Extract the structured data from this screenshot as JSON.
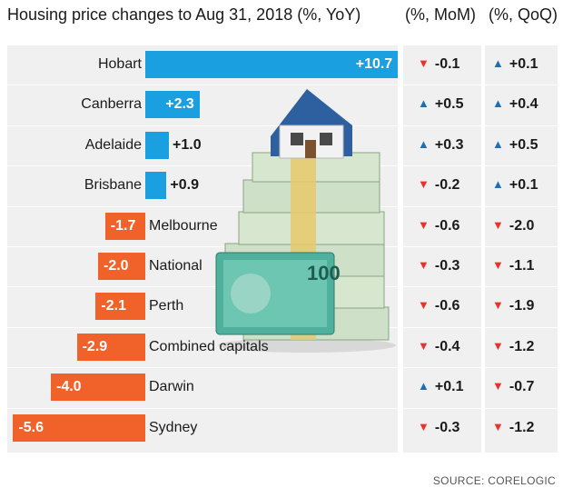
{
  "headers": {
    "yoy": "Housing price changes to Aug 31, 2018 (%, YoY)",
    "mom": "(%, MoM)",
    "qoq": "(%, QoQ)"
  },
  "chart_data": {
    "type": "bar",
    "orientation": "horizontal",
    "title": "Housing price changes to Aug 31, 2018 (%, YoY)",
    "categories": [
      "Hobart",
      "Canberra",
      "Adelaide",
      "Brisbane",
      "Melbourne",
      "National",
      "Perth",
      "Combined capitals",
      "Darwin",
      "Sydney"
    ],
    "yoy_labels": [
      "+10.7",
      "+2.3",
      "+1.0",
      "+0.9",
      "-1.7",
      "-2.0",
      "-2.1",
      "-2.9",
      "-4.0",
      "-5.6"
    ],
    "series": [
      {
        "name": "%, YoY",
        "values": [
          10.7,
          2.3,
          1.0,
          0.9,
          -1.7,
          -2.0,
          -2.1,
          -2.9,
          -4.0,
          -5.6
        ]
      },
      {
        "name": "%, MoM",
        "values": [
          -0.1,
          0.5,
          0.3,
          -0.2,
          -0.6,
          -0.3,
          -0.6,
          -0.4,
          0.1,
          -0.3
        ],
        "labels": [
          "-0.1",
          "+0.5",
          "+0.3",
          "-0.2",
          "-0.6",
          "-0.3",
          "-0.6",
          "-0.4",
          "+0.1",
          "-0.3"
        ]
      },
      {
        "name": "%, QoQ",
        "values": [
          0.1,
          0.4,
          0.5,
          0.1,
          -2.0,
          -1.1,
          -1.9,
          -1.2,
          -0.7,
          -1.2
        ],
        "labels": [
          "+0.1",
          "+0.4",
          "+0.5",
          "+0.1",
          "-2.0",
          "-1.1",
          "-1.9",
          "-1.2",
          "-0.7",
          "-1.2"
        ]
      }
    ],
    "colors": {
      "positive": "#1aa0e0",
      "negative": "#f0622a",
      "arrow_up": "#1f6fb5",
      "arrow_down": "#e8332a",
      "panel": "#f0f0f0"
    },
    "grid": false,
    "legend": "none"
  },
  "source": "SOURCE: CORELOGIC"
}
